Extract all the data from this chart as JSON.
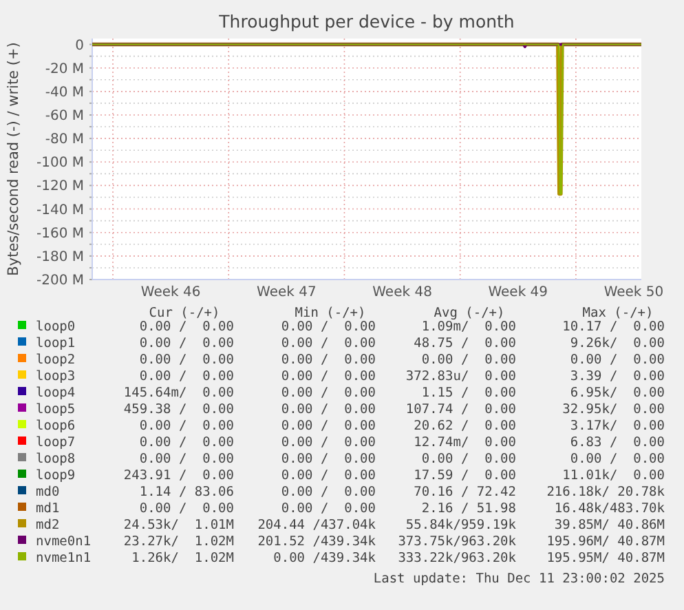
{
  "chart_data": {
    "type": "line",
    "title": "Throughput per device - by month",
    "ylabel": "Bytes/second read (-) / write (+)",
    "xlim": [
      "2025-11-08T18:00",
      "2025-12-11T23:00"
    ],
    "xticks": [
      {
        "value": "2025-11-10",
        "label": null
      },
      {
        "value": "2025-11-13T12:00",
        "label": "Week 46"
      },
      {
        "value": "2025-11-17",
        "label": null
      },
      {
        "value": "2025-11-20T12:00",
        "label": "Week 47"
      },
      {
        "value": "2025-11-24",
        "label": null
      },
      {
        "value": "2025-11-27T12:00",
        "label": "Week 48"
      },
      {
        "value": "2025-12-01",
        "label": null
      },
      {
        "value": "2025-12-04T12:00",
        "label": "Week 49"
      },
      {
        "value": "2025-12-08",
        "label": null
      },
      {
        "value": "2025-12-11T12:00",
        "label": "Week 50"
      }
    ],
    "ylim": [
      -200,
      5
    ],
    "yticks": [
      {
        "value": 0,
        "label": "0"
      },
      {
        "value": -10,
        "label": null
      },
      {
        "value": -20,
        "label": "-20 M"
      },
      {
        "value": -30,
        "label": null
      },
      {
        "value": -40,
        "label": "-40 M"
      },
      {
        "value": -50,
        "label": null
      },
      {
        "value": -60,
        "label": "-60 M"
      },
      {
        "value": -70,
        "label": null
      },
      {
        "value": -80,
        "label": "-80 M"
      },
      {
        "value": -90,
        "label": null
      },
      {
        "value": -100,
        "label": "-100 M"
      },
      {
        "value": -110,
        "label": null
      },
      {
        "value": -120,
        "label": "-120 M"
      },
      {
        "value": -130,
        "label": null
      },
      {
        "value": -140,
        "label": "-140 M"
      },
      {
        "value": -150,
        "label": null
      },
      {
        "value": -160,
        "label": "-160 M"
      },
      {
        "value": -170,
        "label": null
      },
      {
        "value": -180,
        "label": "-180 M"
      },
      {
        "value": -190,
        "label": null
      },
      {
        "value": -200,
        "label": "-200 M"
      }
    ],
    "grid": true,
    "legend": "bottom",
    "marker": "none",
    "line_style": "solid",
    "series": [
      {
        "name": "loop0",
        "color": "#00cc00"
      },
      {
        "name": "loop1",
        "color": "#0066b3"
      },
      {
        "name": "loop2",
        "color": "#ff8000"
      },
      {
        "name": "loop3",
        "color": "#ffcc00"
      },
      {
        "name": "loop4",
        "color": "#330099"
      },
      {
        "name": "loop5",
        "color": "#990099"
      },
      {
        "name": "loop6",
        "color": "#ccff00"
      },
      {
        "name": "loop7",
        "color": "#ff0000"
      },
      {
        "name": "loop8",
        "color": "#808080"
      },
      {
        "name": "loop9",
        "color": "#008f00"
      },
      {
        "name": "md0",
        "color": "#00487d"
      },
      {
        "name": "md1",
        "color": "#b35a00"
      },
      {
        "name": "md2",
        "color": "#b38f00",
        "x": [
          "2025-11-08T18:00",
          "2025-12-06T22:00",
          "2025-12-07T00:00",
          "2025-12-07T02:00",
          "2025-12-07T04:00",
          "2025-12-11T23:00"
        ],
        "values": [
          0,
          0,
          -127,
          -127,
          0,
          0
        ]
      },
      {
        "name": "nvme0n1",
        "color": "#6b006b",
        "x": [
          "2025-11-08T18:00",
          "2025-12-04T20:00",
          "2025-12-04T22:00",
          "2025-12-05T00:00",
          "2025-12-11T23:00"
        ],
        "values": [
          0,
          0,
          -2,
          0,
          0
        ]
      },
      {
        "name": "nvme1n1",
        "color": "#8fb300",
        "x": [
          "2025-11-08T18:00",
          "2025-12-06T23:00",
          "2025-12-07T01:00",
          "2025-12-07T03:00",
          "2025-12-07T05:00",
          "2025-12-11T23:00"
        ],
        "values": [
          0,
          0,
          -127,
          -127,
          0,
          0
        ]
      }
    ],
    "annotations": [
      "Cur (-/+)",
      "Min (-/+)",
      "Avg (-/+)",
      "Max (-/+)",
      "0.00 /  0.00",
      "0.00 /  0.00",
      "1.09m/  0.00",
      "10.17 /  0.00",
      "0.00 /  0.00",
      "0.00 /  0.00",
      "48.75 /  0.00",
      "9.26k/  0.00",
      "0.00 /  0.00",
      "0.00 /  0.00",
      "0.00 /  0.00",
      "0.00 /  0.00",
      "0.00 /  0.00",
      "0.00 /  0.00",
      "372.83u/  0.00",
      "3.39 /  0.00",
      "145.64m/  0.00",
      "0.00 /  0.00",
      "1.15 /  0.00",
      "6.95k/  0.00",
      "459.38 /  0.00",
      "0.00 /  0.00",
      "107.74 /  0.00",
      "32.95k/  0.00",
      "0.00 /  0.00",
      "0.00 /  0.00",
      "20.62 /  0.00",
      "3.17k/  0.00",
      "0.00 /  0.00",
      "0.00 /  0.00",
      "12.74m/  0.00",
      "6.83 /  0.00",
      "0.00 /  0.00",
      "0.00 /  0.00",
      "0.00 /  0.00",
      "0.00 /  0.00",
      "243.91 /  0.00",
      "0.00 /  0.00",
      "17.59 /  0.00",
      "11.01k/  0.00",
      "1.14 / 83.06",
      "0.00 /  0.00",
      "70.16 / 72.42",
      "216.18k/ 20.78k",
      "0.00 /  0.00",
      "0.00 /  0.00",
      "2.16 / 51.98",
      "16.48k/483.70k",
      "24.53k/  1.01M",
      "204.44 /437.04k",
      "55.84k/959.19k",
      "39.85M/ 40.86M",
      "23.27k/  1.02M",
      "201.52 /439.34k",
      "373.75k/963.20k",
      "195.96M/ 40.87M",
      "1.26k/  1.02M",
      "0.00 /439.34k",
      "333.22k/963.20k",
      "195.95M/ 40.87M",
      "Last update: Thu Dec 11 23:00:02 2025"
    ]
  }
}
